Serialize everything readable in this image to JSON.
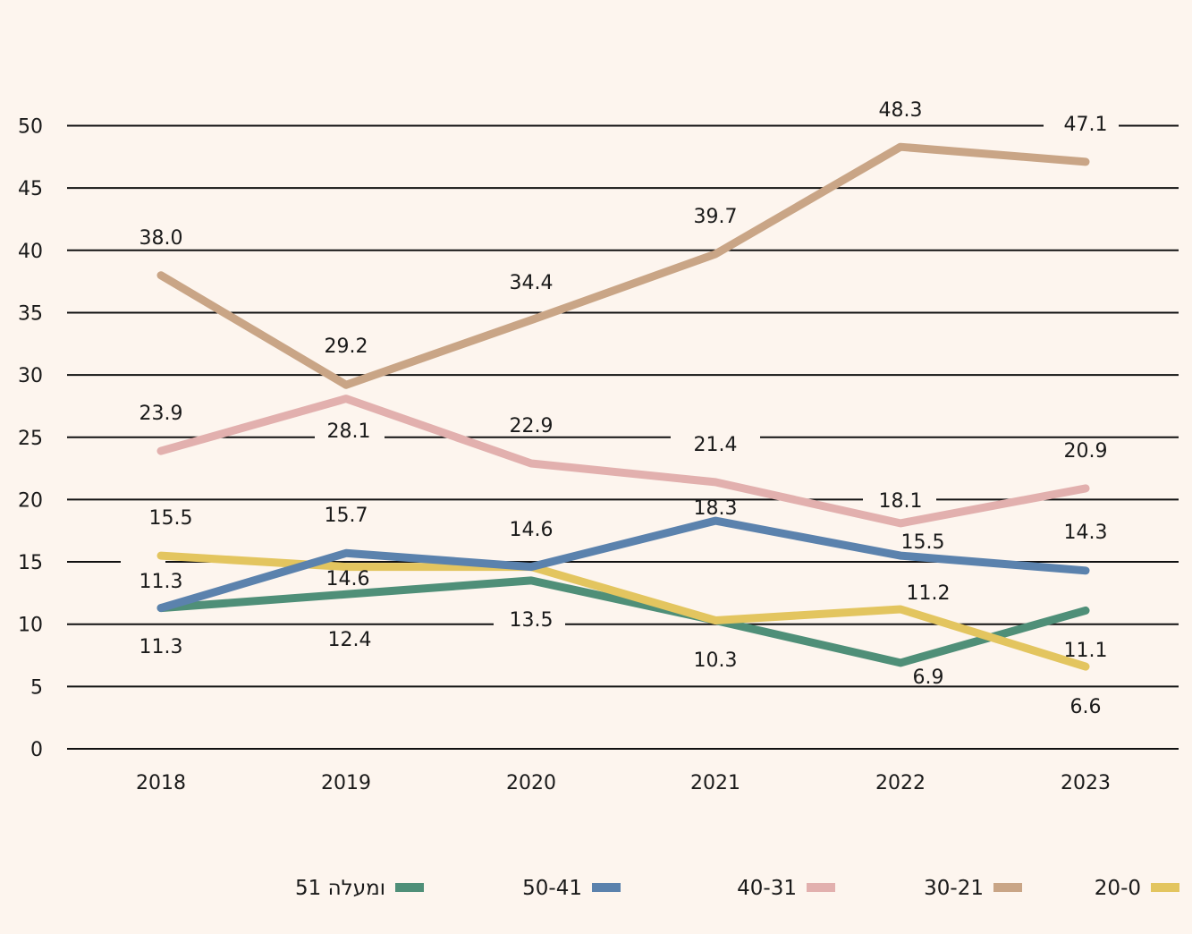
{
  "chart_data": {
    "type": "line",
    "categories": [
      "2018",
      "2019",
      "2020",
      "2021",
      "2022",
      "2023"
    ],
    "ylim": [
      0,
      50
    ],
    "yticks": [
      0,
      5,
      10,
      15,
      20,
      25,
      30,
      35,
      40,
      45,
      50
    ],
    "grid": true,
    "legend_position": "bottom",
    "series": [
      {
        "name": "51 ומעלה",
        "color": "#4f8f78",
        "values": [
          11.3,
          12.4,
          13.5,
          10.3,
          6.9,
          11.1
        ]
      },
      {
        "name": "50-41",
        "color": "#5b82ad",
        "values": [
          11.3,
          15.7,
          14.6,
          18.3,
          15.5,
          14.3
        ]
      },
      {
        "name": "40-31",
        "color": "#e2b0ae",
        "values": [
          23.9,
          28.1,
          22.9,
          21.4,
          18.1,
          20.9
        ]
      },
      {
        "name": "30-21",
        "color": "#c9a586",
        "values": [
          38.0,
          29.2,
          34.4,
          39.7,
          48.3,
          47.1
        ]
      },
      {
        "name": "20-0",
        "color": "#e3c55f",
        "values": [
          15.5,
          14.6,
          14.6,
          10.3,
          11.2,
          6.6
        ]
      }
    ],
    "data_labels": [
      {
        "text": "38.0"
      },
      {
        "text": "29.2"
      },
      {
        "text": "34.4"
      },
      {
        "text": "39.7"
      },
      {
        "text": "48.3"
      },
      {
        "text": "47.1"
      },
      {
        "text": "23.9"
      },
      {
        "text": "28.1"
      },
      {
        "text": "22.9"
      },
      {
        "text": "21.4"
      },
      {
        "text": "18.1"
      },
      {
        "text": "20.9"
      },
      {
        "text": "15.5"
      },
      {
        "text": "15.7"
      },
      {
        "text": "14.6"
      },
      {
        "text": "18.3"
      },
      {
        "text": "15.5"
      },
      {
        "text": "14.3"
      },
      {
        "text": "11.3"
      },
      {
        "text": "14.6"
      },
      {
        "text": "11.2"
      },
      {
        "text": "11.1"
      },
      {
        "text": "11.3"
      },
      {
        "text": "12.4"
      },
      {
        "text": "13.5"
      },
      {
        "text": "10.3"
      },
      {
        "text": "6.9"
      },
      {
        "text": "6.6"
      }
    ]
  }
}
